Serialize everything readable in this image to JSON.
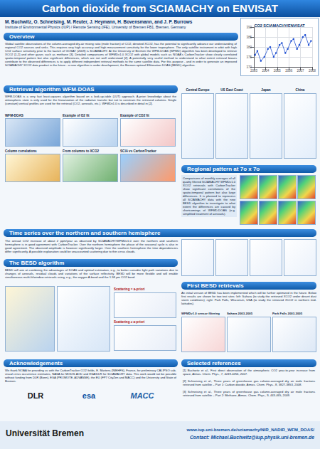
{
  "title": "Carbon dioxide from SCIAMACHY on ENVISAT",
  "authors": "M. Buchwitz, O. Schneising, M. Reuter, J. Heymann, H. Bovensmann, and J. P. Burrows",
  "institute": "Institute of Environmental Physics (IUP) / Remote Sensing (IFE), University of Bremen FB1, Bremen, Germany",
  "chart_data": {
    "type": "line",
    "title": "CO2 SCIAMACHY/ENVISAT",
    "x": [
      2003.1,
      2003.3,
      2003.6,
      2003.9,
      2004.2,
      2004.4,
      2004.7,
      2004.9,
      2005.2,
      2005.4,
      2005.7,
      2005.9,
      2006.2,
      2006.4,
      2006.7,
      2006.9,
      2007.2,
      2007.4,
      2007.7,
      2007.9
    ],
    "series": [
      {
        "color": "#1f4fd1",
        "marker": "circle",
        "values": [
          376,
          378,
          373,
          375,
          379,
          380,
          375,
          377,
          381,
          382,
          377,
          379,
          383,
          384,
          379,
          381,
          385,
          386,
          381,
          383
        ]
      }
    ],
    "xlim": [
      2003,
      2008
    ],
    "xticks": [
      2003,
      2004,
      2005,
      2006,
      2007,
      2008
    ],
    "ylim": [
      370,
      390
    ],
    "yticks": [
      370,
      375,
      380,
      385,
      390
    ],
    "grid": true
  },
  "overview": {
    "heading": "Overview",
    "text": "Global satellite observations of the column-averaged dry-air mixing ratio (mole fraction) of CO2, denoted XCO2, has the potential to significantly advance our understanding of regional CO2 sources and sinks. This requires very high accuracy and high measurement sensitivity for the lower troposphere. The only satellite instrument in orbit with high CO2 surface sensitivity prior to the launch of GOSAT (2009) is SCIAMACHY. At the University of Bremen the WFM-DOAS (WFMD) algorithm has been developed to retrieve XCO2 [1,2] and other gases such as methane [3]. Detailed comparisons of WFMDv1.0 XCO2 with global models such as NOAA's CarbonTracker show clearly correlated spatio-temporal pattern but also significant differences, which are not well understood [2]. A potentially very useful method to understand to what extent retrieval biases contribute to the observed differences is to apply different independent retrieval methods to the same satellite data. For this purpose - and in order to generate an improved SCIAMACHY XCO2 data product in the future - a new algorithm is under development, the Bremen optimal EStimation DOAS (BESD) algorithm."
  },
  "region_panels": [
    "Central Europe",
    "US East Coast",
    "Japan",
    "China"
  ],
  "wfmdoas": {
    "heading": "Retrieval algorithm WFM-DOAS",
    "text": "WFM-DOAS is a very fast least-squares algorithm based on a look-up-table (LUT) approach. A-priori knowledge about the atmospheric state is only used for the linearization of the radiative transfer but not to constrain the retrieved columns. Single (constant) vertical profiles are used for the retrieval (CO2, aerosols, etc.). WFMDv1.0 is described in detail in [2].",
    "figure_labels": [
      "WFM-DOAS",
      "Example of O2 fit",
      "Example of CO2 fit",
      "Column correlations",
      "From columns to XCO2",
      "SCIA vs CarbonTracker"
    ]
  },
  "regional": {
    "heading": "Regional pattern at 7o x 7o",
    "text": "Comparisons of monthly averages of all quality filtered SCIAMACHY WFMDv1.0 XCO2 retrievals with CarbonTracker show significant correlations of the spatio-temporal pattern but also large differences. It is planned to reprocess all SCIAMACHY data with the new BESD algorithm to investigate to what extent the differences are caused by shortcomings of WFMD-DOAS (e.g. simplified treatment of aerosols)."
  },
  "timeseries": {
    "heading": "Time series over the northern and southern hemisphere",
    "text": "The annual CO2 increase of about 2 ppm/year as observed by SCIAMACHY/WFMDv1.0 over the northern and southern hemisphere is in good agreement with CarbonTracker. Over the northern hemisphere the phase of the seasonal cycle is also in good agreement. The observed amplitude is however significantly larger. Over the southern hemisphere the time dependencies differ significantly. A possible explanation could be unaccounted scattering due to thin cirrus clouds."
  },
  "besd": {
    "heading": "The BESD algorithm",
    "text": "BESD will aim at combining the advantages of DOAS and optimal estimation, e.g., to better consider light path variations due to changes of aerosols, residual clouds and variations of the surface reflectivity. BESD will be more flexible and will enable simultaneous multi-fit/window retrievals using, e.g., the oxygen A-band and the 1.58 µm CO2 band.",
    "figure_labels": [
      "Scattering = a-priori",
      "Scattering ≠ a-priori"
    ]
  },
  "first_besd": {
    "heading": "First BESD retrievals",
    "text": "An initial version of BESD has been implemented which will be further optimized in the future. Below first results are shown for two test sites: left: Sahara (to study the retrieved XCO2 under desert dust storm conditions); right: Park Falls, Wisconsin, USA (to study the retrieved XCO2 in northern mid-latitudes).",
    "figure_labels": [
      "WFMDv1.0 sensor filtering",
      "Sahara 2003-2005",
      "Park Falls 2003-2005"
    ]
  },
  "acknowledgements": {
    "heading": "Acknowledgements",
    "text": "We thank NOAA for providing us with the CarbonTracker CO2 fields, E. Martens (NIEHFS), France, for preliminary CALIPSO sub-visual cirrus occurrence estimates, NASA for MODIS AOD and ESA/DLR for SCIAMACHY data. This work would not be possible without funding from DLR (Bonn), ESA (PROMOTE, ADVANSE), the EU (FP7 CityZen and MACC) and the University and State of Bremen.",
    "logos": [
      "DLR",
      "esa",
      "MACC"
    ]
  },
  "references": {
    "heading": "Selected references",
    "items": [
      "[1] Buchwitz et al., First direct observation of the atmospheric CO2 year-to-year increase from space, Atmos. Chem. Phys., 7, 4249-4256, 2007.",
      "[2] Schneising et al., Three years of greenhouse gas column-averaged dry air mole fractions retrieved from satellite – Part 1: Carbon dioxide, Atmos. Chem. Phys., 8, 3827-3853, 2008.",
      "[3] Schneising et al., Three years of greenhouse gas column-averaged dry air mole fractions retrieved from satellite – Part 2: Methane, Atmos. Chem. Phys., 9, 443-465, 2009."
    ]
  },
  "footer": {
    "university": "Universität Bremen",
    "url": "www.iup.uni-bremen.de/sciamachy/NIR_NADIR_WFM_DOAS/",
    "contact": "Contact: Michael.Buchwitz@iup.physik.uni-bremen.de"
  }
}
